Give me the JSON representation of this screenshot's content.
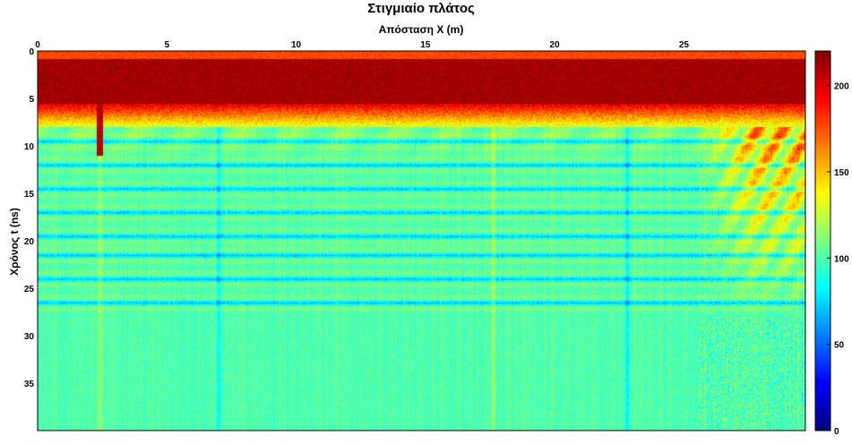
{
  "chart_data": {
    "type": "heatmap",
    "title": "Στιγμιαίο πλάτος",
    "xlabel": "Απόσταση X (m)",
    "ylabel": "Χρόνος t (ns)",
    "x_axis_position": "top",
    "y_reversed": true,
    "xlim": [
      0,
      29.7
    ],
    "ylim": [
      0,
      40
    ],
    "x_ticks": [
      0,
      5,
      10,
      15,
      20,
      25
    ],
    "y_ticks": [
      0,
      5,
      10,
      15,
      20,
      25,
      30,
      35
    ],
    "colormap": "jet",
    "clim": [
      0,
      220
    ],
    "colorbar": {
      "placement": "right",
      "ticks": [
        0,
        50,
        100,
        150,
        200
      ]
    },
    "grid": false,
    "structure": {
      "saturated_band_ns": [
        0.8,
        5.5
      ],
      "transition_end_ns": 8,
      "background_level": 100,
      "horizontal_reflectors_ns": [
        9.5,
        12,
        14.5,
        17,
        19.5,
        21.5,
        24,
        26.5
      ],
      "vertical_anomalies_m": [
        2.4,
        7.0,
        17.6,
        22.8
      ],
      "high_amplitude_zone": {
        "x_m": [
          25.5,
          29.7
        ],
        "t_ns": [
          6,
          28
        ]
      }
    }
  }
}
